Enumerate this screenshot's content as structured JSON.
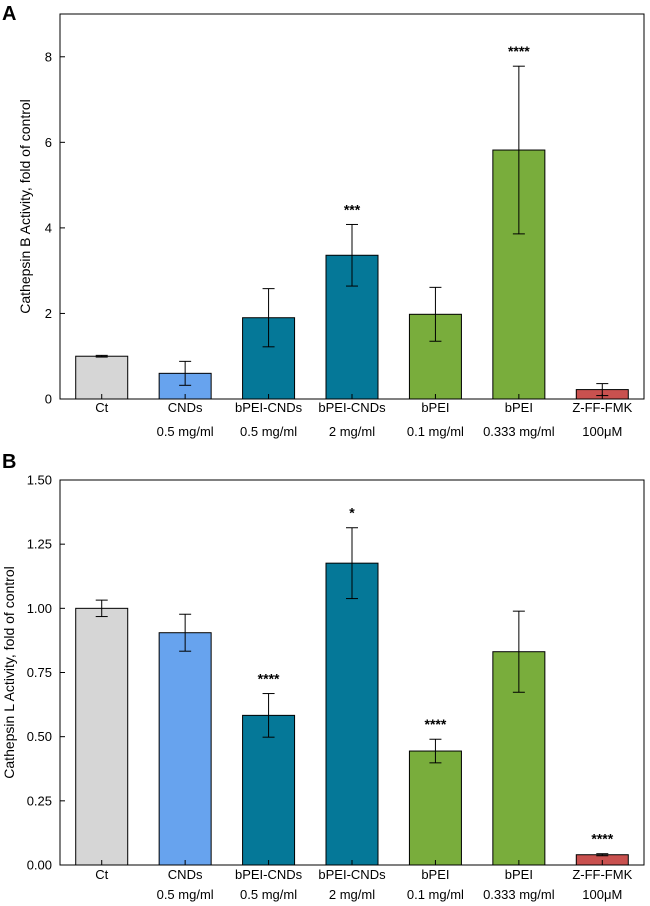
{
  "colors": {
    "ct": "#d6d6d6",
    "cnds": "#67a3ee",
    "bpei_cnds": "#057898",
    "bpei": "#79ad3c",
    "zff": "#c9514f"
  },
  "chart_data": [
    {
      "type": "bar",
      "panel": "A",
      "ylabel": "Cathepsin B Activity, fold of control",
      "ylim": [
        0,
        9
      ],
      "yticks": [
        0,
        2,
        4,
        6,
        8
      ],
      "ytick_labels": [
        "0",
        "2",
        "4",
        "6",
        "8"
      ],
      "categories": [
        [
          "Ct"
        ],
        [
          "CNDs",
          "0.5 mg/ml"
        ],
        [
          "bPEI-CNDs",
          "0.5 mg/ml"
        ],
        [
          "bPEI-CNDs",
          "2 mg/ml"
        ],
        [
          "bPEI",
          "0.1 mg/ml"
        ],
        [
          "bPEI",
          "0.333 mg/ml"
        ],
        [
          "Z-FF-FMK",
          "100μM"
        ]
      ],
      "values": [
        1.0,
        0.6,
        1.9,
        3.36,
        1.98,
        5.82,
        0.22
      ],
      "errors": [
        0.02,
        0.28,
        0.68,
        0.72,
        0.63,
        1.96,
        0.14
      ],
      "significance": [
        "",
        "",
        "",
        "***",
        "",
        "****",
        ""
      ],
      "bar_colors": [
        "ct",
        "cnds",
        "bpei_cnds",
        "bpei_cnds",
        "bpei",
        "bpei",
        "zff"
      ]
    },
    {
      "type": "bar",
      "panel": "B",
      "ylabel": "Cathepsin L Activity, fold of control",
      "ylim": [
        0,
        1.5
      ],
      "yticks": [
        0,
        0.25,
        0.5,
        0.75,
        1.0,
        1.25,
        1.5
      ],
      "ytick_labels": [
        "0.00",
        "0.25",
        "0.50",
        "0.75",
        "1.00",
        "1.25",
        "1.50"
      ],
      "categories": [
        [
          "Ct"
        ],
        [
          "CNDs",
          "0.5 mg/ml"
        ],
        [
          "bPEI-CNDs",
          "0.5 mg/ml"
        ],
        [
          "bPEI-CNDs",
          "2 mg/ml"
        ],
        [
          "bPEI",
          "0.1 mg/ml"
        ],
        [
          "bPEI",
          "0.333 mg/ml"
        ],
        [
          "Z-FF-FMK",
          "100μM"
        ]
      ],
      "values": [
        1.0,
        0.905,
        0.583,
        1.176,
        0.444,
        0.831,
        0.04
      ],
      "errors": [
        0.032,
        0.072,
        0.085,
        0.138,
        0.046,
        0.158,
        0.004
      ],
      "significance": [
        "",
        "",
        "****",
        "*",
        "****",
        "",
        "****"
      ],
      "bar_colors": [
        "ct",
        "cnds",
        "bpei_cnds",
        "bpei_cnds",
        "bpei",
        "bpei",
        "zff"
      ]
    }
  ]
}
